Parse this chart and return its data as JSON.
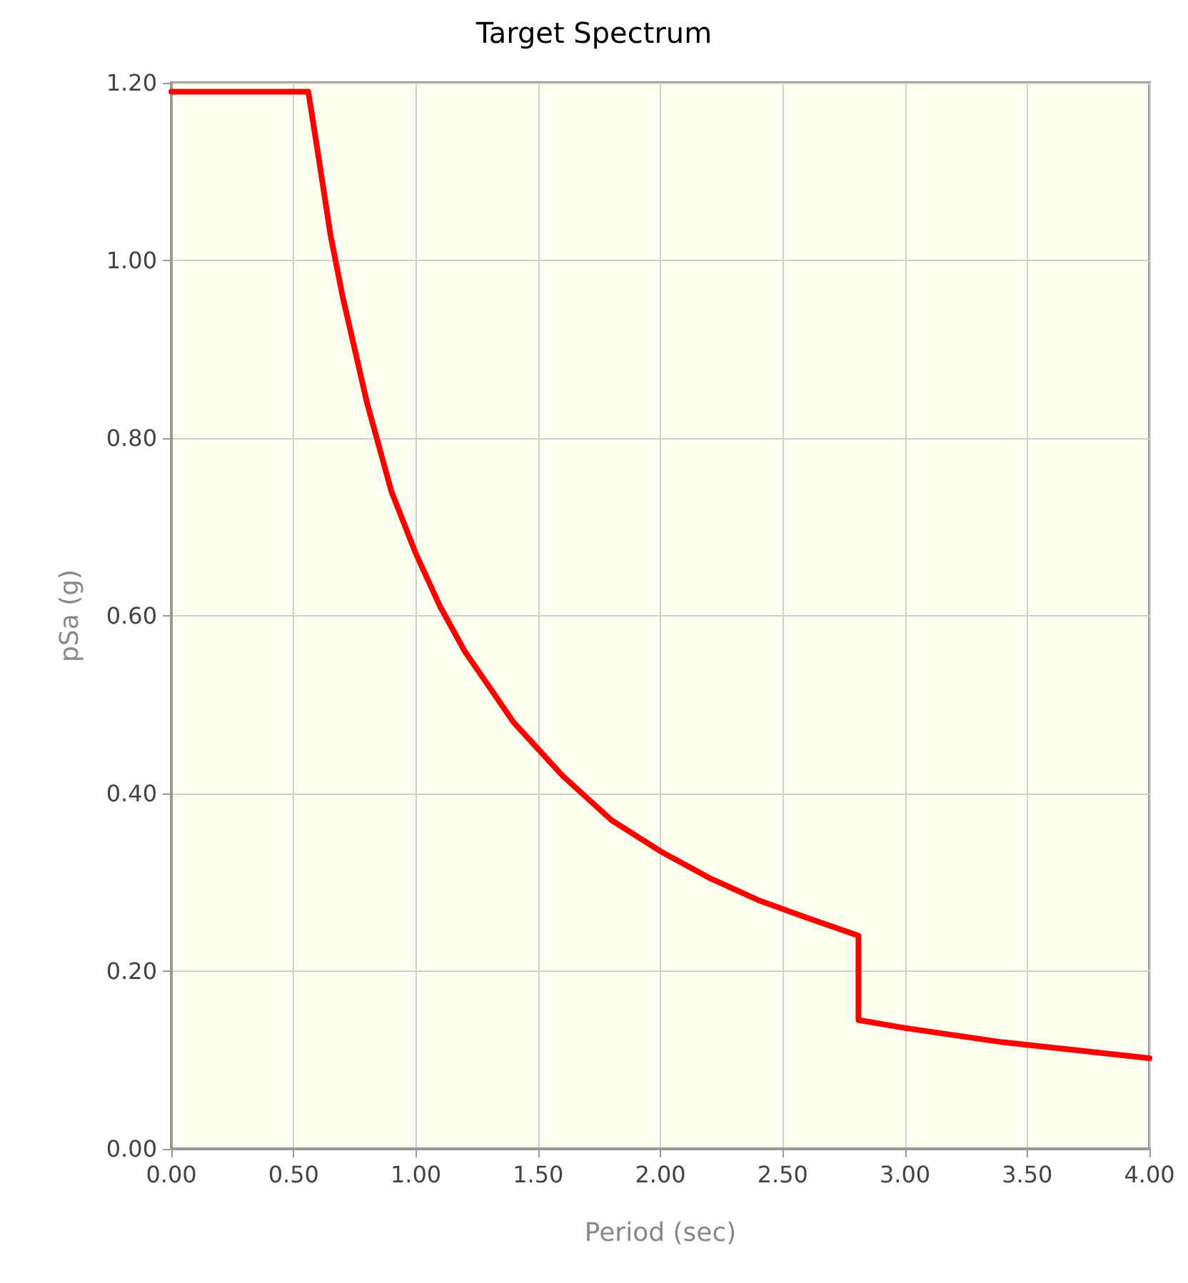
{
  "chart_data": {
    "type": "line",
    "title": "Target Spectrum",
    "xlabel": "Period (sec)",
    "ylabel": "pSa (g)",
    "series": [
      {
        "color": "#ff0000",
        "x": [
          0,
          0.56,
          0.6,
          0.65,
          0.7,
          0.8,
          0.9,
          1.0,
          1.1,
          1.2,
          1.3,
          1.4,
          1.5,
          1.6,
          1.8,
          2.0,
          2.2,
          2.4,
          2.6,
          2.81,
          2.81,
          3.0,
          3.2,
          3.4,
          3.6,
          3.8,
          4.0
        ],
        "values": [
          1.19,
          1.19,
          1.12,
          1.03,
          0.96,
          0.84,
          0.74,
          0.67,
          0.61,
          0.56,
          0.52,
          0.48,
          0.45,
          0.42,
          0.37,
          0.335,
          0.305,
          0.28,
          0.26,
          0.24,
          0.145,
          0.136,
          0.128,
          0.12,
          0.114,
          0.108,
          0.102
        ]
      }
    ],
    "xlim": [
      0,
      4
    ],
    "xticks": [
      {
        "value": 0,
        "label": "0.00"
      },
      {
        "value": 0.5,
        "label": "0.50"
      },
      {
        "value": 1,
        "label": "1.00"
      },
      {
        "value": 1.5,
        "label": "1.50"
      },
      {
        "value": 2,
        "label": "2.00"
      },
      {
        "value": 2.5,
        "label": "2.50"
      },
      {
        "value": 3,
        "label": "3.00"
      },
      {
        "value": 3.5,
        "label": "3.50"
      },
      {
        "value": 4,
        "label": "4.00"
      }
    ],
    "ylim": [
      0,
      1.2
    ],
    "yticks": [
      {
        "value": 0,
        "label": "0.00"
      },
      {
        "value": 0.2,
        "label": "0.20"
      },
      {
        "value": 0.4,
        "label": "0.40"
      },
      {
        "value": 0.6,
        "label": "0.60"
      },
      {
        "value": 0.8,
        "label": "0.80"
      },
      {
        "value": 1,
        "label": "1.00"
      },
      {
        "value": 1.2,
        "label": "1.20"
      }
    ],
    "grid": true,
    "marker": "none",
    "line_style": "solid"
  }
}
